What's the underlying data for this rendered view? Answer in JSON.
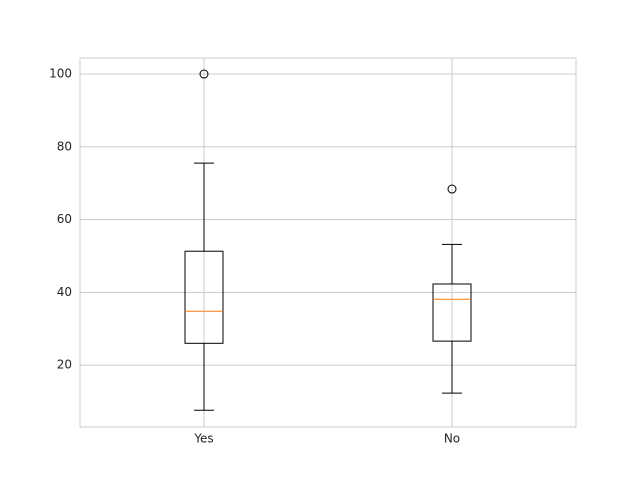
{
  "chart_data": {
    "type": "box",
    "categories": [
      "Yes",
      "No"
    ],
    "boxes": [
      {
        "whislo": 7.6,
        "q1": 26.0,
        "med": 34.8,
        "q3": 51.3,
        "whishi": 75.5,
        "fliers": [
          100
        ]
      },
      {
        "whislo": 12.3,
        "q1": 26.6,
        "med": 38.1,
        "q3": 42.3,
        "whishi": 53.2,
        "fliers": [
          68.4
        ]
      }
    ],
    "box_color": "#000000",
    "median_color": "#ff7f0e",
    "ylim": [
      3.0,
      104.4
    ],
    "yticks": [
      20,
      40,
      60,
      80,
      100
    ],
    "grid": true
  }
}
